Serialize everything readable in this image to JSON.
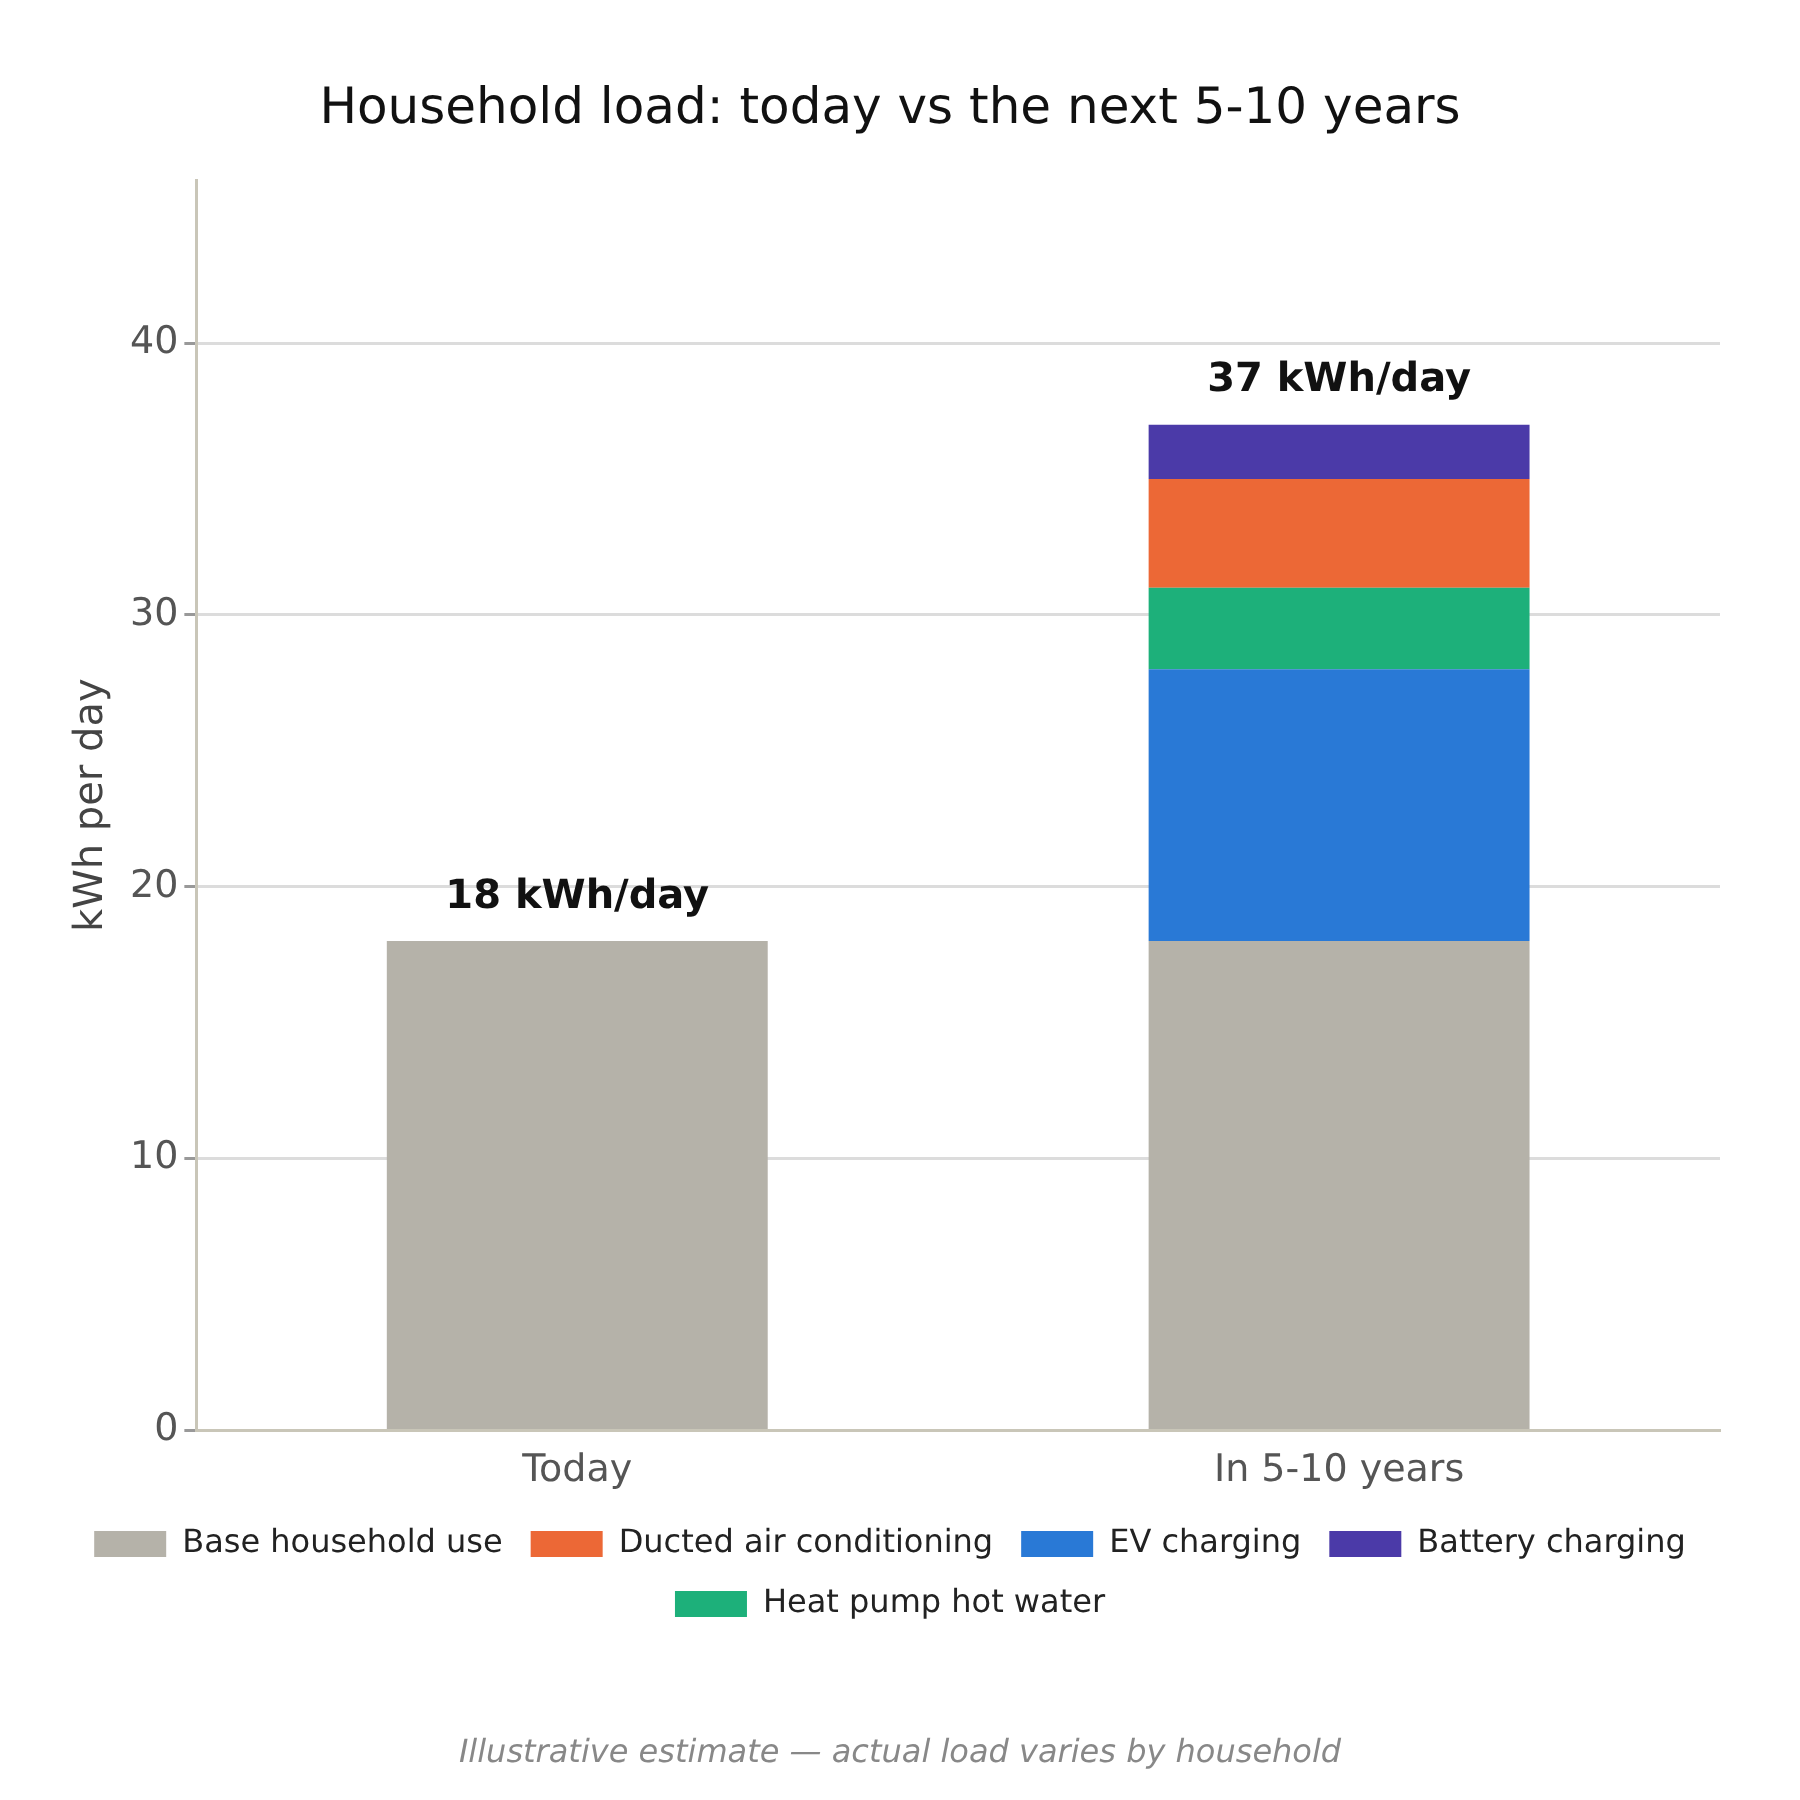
{
  "chart_data": {
    "type": "bar",
    "title": "Household load: today vs the next 5-10 years",
    "ylabel": "kWh per day",
    "categories": [
      "Today",
      "In 5-10 years"
    ],
    "stacked": true,
    "series": [
      {
        "name": "Base household use",
        "color": "#b5b2a9",
        "values": [
          18,
          18
        ]
      },
      {
        "name": "EV charging",
        "color": "#2979d6",
        "values": [
          null,
          10
        ]
      },
      {
        "name": "Heat pump hot water",
        "color": "#1db07a",
        "values": [
          null,
          3
        ]
      },
      {
        "name": "Ducted air conditioning",
        "color": "#ec6836",
        "values": [
          null,
          4
        ]
      },
      {
        "name": "Battery charging",
        "color": "#4b3aa8",
        "values": [
          null,
          2
        ]
      }
    ],
    "totals": [
      "18 kWh/day",
      "37 kWh/day"
    ],
    "ylim": [
      0,
      46
    ],
    "yticks": [
      0,
      10,
      20,
      30,
      40
    ],
    "grid": "y",
    "legend": "bottom",
    "annotations": [
      "Illustrative estimate — actual load varies by household"
    ]
  }
}
